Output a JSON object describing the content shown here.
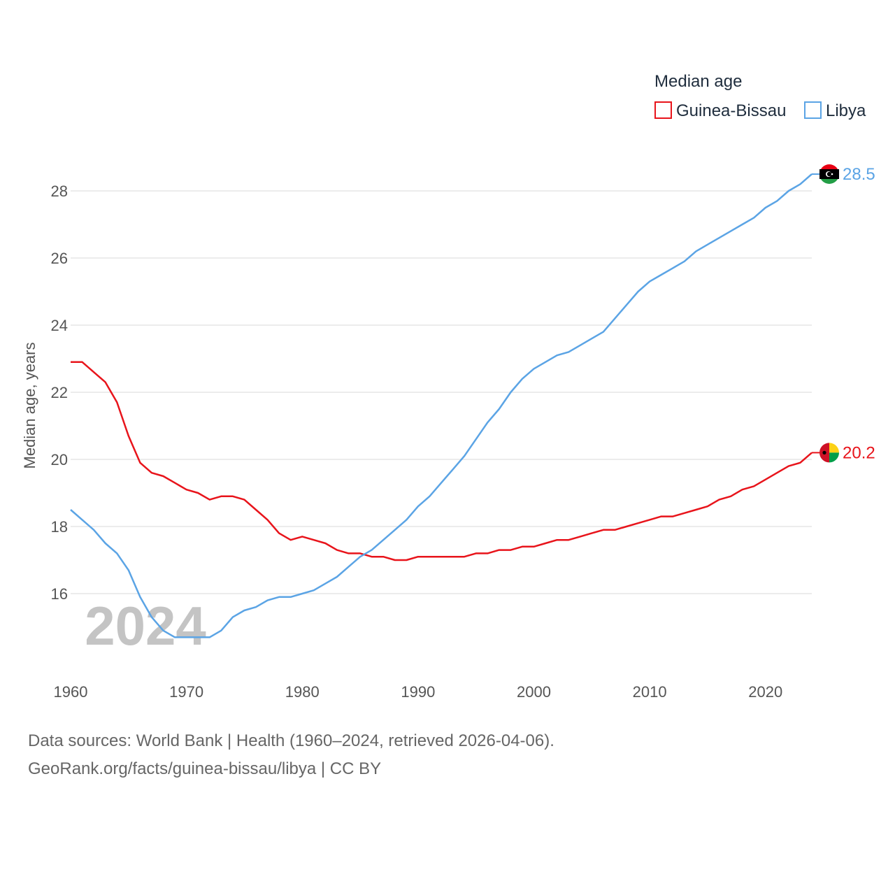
{
  "chart_data": {
    "type": "line",
    "legend_title": "Median age",
    "ylabel": "Median age, years",
    "xlabel": "",
    "current_year_label": "2024",
    "xlim": [
      1960,
      2024
    ],
    "ylim": [
      14.0,
      29.0
    ],
    "x_ticks": [
      1960,
      1970,
      1980,
      1990,
      2000,
      2010,
      2020
    ],
    "y_ticks": [
      16,
      18,
      20,
      22,
      24,
      26,
      28
    ],
    "legend_position": "top-right",
    "years": [
      1960,
      1961,
      1962,
      1963,
      1964,
      1965,
      1966,
      1967,
      1968,
      1969,
      1970,
      1971,
      1972,
      1973,
      1974,
      1975,
      1976,
      1977,
      1978,
      1979,
      1980,
      1981,
      1982,
      1983,
      1984,
      1985,
      1986,
      1987,
      1988,
      1989,
      1990,
      1991,
      1992,
      1993,
      1994,
      1995,
      1996,
      1997,
      1998,
      1999,
      2000,
      2001,
      2002,
      2003,
      2004,
      2005,
      2006,
      2007,
      2008,
      2009,
      2010,
      2011,
      2012,
      2013,
      2014,
      2015,
      2016,
      2017,
      2018,
      2019,
      2020,
      2021,
      2022,
      2023,
      2024
    ],
    "series": [
      {
        "name": "Guinea-Bissau",
        "color": "#e8141b",
        "end_value_label": "20.2",
        "flag": "guinea-bissau-flag-icon",
        "values": [
          22.9,
          22.9,
          22.6,
          22.3,
          21.7,
          20.7,
          19.9,
          19.6,
          19.5,
          19.3,
          19.1,
          19.0,
          18.8,
          18.9,
          18.9,
          18.8,
          18.5,
          18.2,
          17.8,
          17.6,
          17.7,
          17.6,
          17.5,
          17.3,
          17.2,
          17.2,
          17.1,
          17.1,
          17.0,
          17.0,
          17.1,
          17.1,
          17.1,
          17.1,
          17.1,
          17.2,
          17.2,
          17.3,
          17.3,
          17.4,
          17.4,
          17.5,
          17.6,
          17.6,
          17.7,
          17.8,
          17.9,
          17.9,
          18.0,
          18.1,
          18.2,
          18.3,
          18.3,
          18.4,
          18.5,
          18.6,
          18.8,
          18.9,
          19.1,
          19.2,
          19.4,
          19.6,
          19.8,
          19.9,
          20.2
        ]
      },
      {
        "name": "Libya",
        "color": "#5ba4e5",
        "end_value_label": "28.5",
        "flag": "libya-flag-icon",
        "values": [
          18.5,
          18.2,
          17.9,
          17.5,
          17.2,
          16.7,
          15.9,
          15.3,
          14.9,
          14.7,
          14.7,
          14.7,
          14.7,
          14.9,
          15.3,
          15.5,
          15.6,
          15.8,
          15.9,
          15.9,
          16.0,
          16.1,
          16.3,
          16.5,
          16.8,
          17.1,
          17.3,
          17.6,
          17.9,
          18.2,
          18.6,
          18.9,
          19.3,
          19.7,
          20.1,
          20.6,
          21.1,
          21.5,
          22.0,
          22.4,
          22.7,
          22.9,
          23.1,
          23.2,
          23.4,
          23.6,
          23.8,
          24.2,
          24.6,
          25.0,
          25.3,
          25.5,
          25.7,
          25.9,
          26.2,
          26.4,
          26.6,
          26.8,
          27.0,
          27.2,
          27.5,
          27.7,
          28.0,
          28.2,
          28.5
        ]
      }
    ]
  },
  "source": {
    "line1": "Data sources: World Bank | Health (1960–2024, retrieved 2026-04-06).",
    "line2": "GeoRank.org/facts/guinea-bissau/libya | CC BY"
  }
}
